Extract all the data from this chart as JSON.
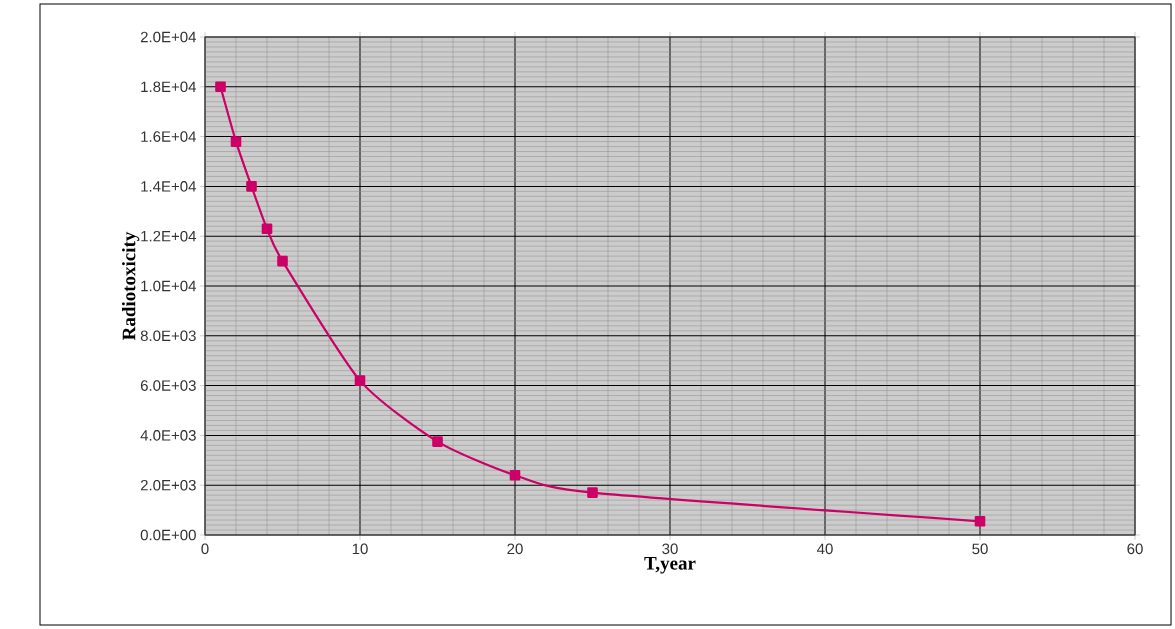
{
  "chart_data": {
    "type": "line",
    "xlabel": "T,year",
    "ylabel": "Radiotoxicity",
    "x": [
      1,
      2,
      3,
      4,
      5,
      10,
      15,
      20,
      25,
      50
    ],
    "series": [
      {
        "color": "#cc0066",
        "values": [
          18000,
          15800,
          14000,
          12300,
          11000,
          6200,
          3750,
          2400,
          1700,
          550
        ]
      }
    ],
    "xlim": [
      0,
      60
    ],
    "xticks": [
      0,
      10,
      20,
      30,
      40,
      50,
      60
    ],
    "ylim": [
      0,
      20000
    ],
    "yticks": [
      {
        "value": 0,
        "label": "0.0E+00"
      },
      {
        "value": 2000,
        "label": "2.0E+03"
      },
      {
        "value": 4000,
        "label": "4.0E+03"
      },
      {
        "value": 6000,
        "label": "6.0E+03"
      },
      {
        "value": 8000,
        "label": "8.0E+03"
      },
      {
        "value": 10000,
        "label": "1.0E+04"
      },
      {
        "value": 12000,
        "label": "1.2E+04"
      },
      {
        "value": 14000,
        "label": "1.4E+04"
      },
      {
        "value": 16000,
        "label": "1.6E+04"
      },
      {
        "value": 18000,
        "label": "1.8E+04"
      },
      {
        "value": 20000,
        "label": "2.0E+04"
      }
    ],
    "grid": true,
    "marker": "square",
    "line_style": "solid"
  }
}
